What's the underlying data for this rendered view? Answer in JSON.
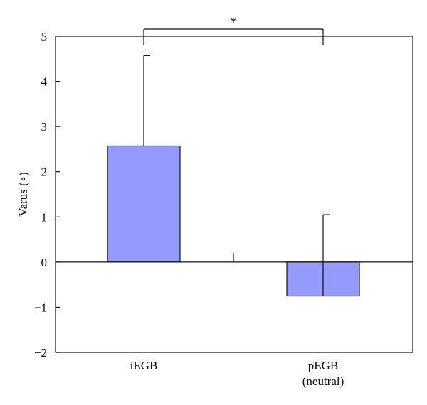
{
  "chart_data": {
    "type": "bar",
    "title": "",
    "xlabel": "",
    "ylabel": "Varus (∘)",
    "ylim": [
      -2,
      5
    ],
    "yticks": [
      -2,
      -1,
      0,
      1,
      2,
      3,
      4,
      5
    ],
    "ytick_labels": [
      "−2",
      "−1",
      "0",
      "1",
      "2",
      "3",
      "4",
      "5"
    ],
    "categories": [
      "iEGB",
      "pEGB"
    ],
    "category_sublabels": [
      "",
      "(neutral)"
    ],
    "values": [
      2.57,
      -0.75
    ],
    "error_upper": [
      4.57,
      1.05
    ],
    "significance": {
      "between": [
        0,
        1
      ],
      "label": "*"
    },
    "grid": false,
    "bar_color": "#959bfe",
    "edge_color": "#111111"
  }
}
